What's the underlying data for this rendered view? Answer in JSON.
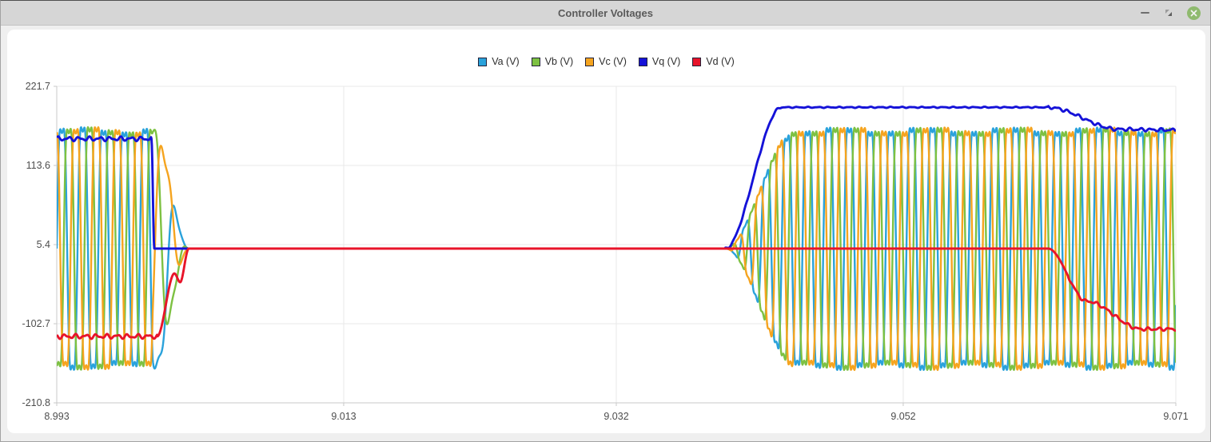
{
  "window": {
    "title": "Controller Voltages",
    "minimize_label": "minimize",
    "restore_label": "restore",
    "close_label": "close",
    "close_color": "#8FBA6E"
  },
  "chart_data": {
    "type": "line",
    "title": "",
    "xlabel": "",
    "ylabel": "",
    "x_range": [
      8.993,
      9.071
    ],
    "y_range": [
      -210.8,
      221.7
    ],
    "x_ticks": [
      "8.993",
      "9.013",
      "9.032",
      "9.052",
      "9.071"
    ],
    "x_tick_values": [
      8.993,
      9.013,
      9.032,
      9.052,
      9.071
    ],
    "y_ticks": [
      "221.7",
      "113.6",
      "5.4",
      "-102.7",
      "-210.8"
    ],
    "y_tick_values": [
      221.7,
      113.6,
      5.4,
      -102.7,
      -210.8
    ],
    "grid": true,
    "legend_position": "top-center",
    "grid_color": "#E8E8E8",
    "axis_color": "#C9C9C9",
    "tick_text_color": "#4D4D4D",
    "carrier_frequency_hz": 690,
    "decay_window": [
      8.9997,
      9.0022
    ],
    "decay_freq_scale": 0.5,
    "waveform_shape": {
      "fundamental_gain": 1.15,
      "third_harmonic_gain": 0.19,
      "ripple_harmonics": [
        2.0,
        3.3
      ]
    },
    "envelope_wobble": {
      "amp": 0.022,
      "freq_hz": 170
    },
    "series": [
      {
        "name": "Va (V)",
        "color": "#2AA2DB",
        "kind": "phase",
        "phase_deg": 0,
        "amplitude_v": 163,
        "envelope": [
          [
            8.993,
            163
          ],
          [
            8.9997,
            163
          ],
          [
            9.0022,
            0
          ],
          [
            9.0396,
            0
          ],
          [
            9.0445,
            163
          ],
          [
            9.071,
            163
          ]
        ]
      },
      {
        "name": "Vb (V)",
        "color": "#7DC142",
        "kind": "phase",
        "phase_deg": -120,
        "amplitude_v": 163,
        "envelope": [
          [
            8.993,
            163
          ],
          [
            8.9997,
            163
          ],
          [
            9.0022,
            0
          ],
          [
            9.0396,
            0
          ],
          [
            9.0445,
            163
          ],
          [
            9.071,
            163
          ]
        ]
      },
      {
        "name": "Vc (V)",
        "color": "#F5A41F",
        "kind": "phase",
        "phase_deg": -240,
        "amplitude_v": 163,
        "envelope": [
          [
            8.993,
            163
          ],
          [
            8.9997,
            163
          ],
          [
            9.0022,
            0
          ],
          [
            9.0396,
            0
          ],
          [
            9.0445,
            163
          ],
          [
            9.071,
            163
          ]
        ]
      },
      {
        "name": "Vq (V)",
        "color": "#1512D8",
        "kind": "dq",
        "base": [
          [
            8.993,
            150
          ],
          [
            8.9996,
            150
          ],
          [
            8.9998,
            0
          ],
          [
            9.0396,
            0
          ],
          [
            9.0435,
            193
          ],
          [
            9.0621,
            193
          ],
          [
            9.067,
            163
          ],
          [
            9.071,
            162
          ]
        ],
        "ripples": [
          {
            "window": [
              8.993,
              8.9996
            ],
            "amp": 3.2,
            "phase_deg": 40
          },
          {
            "window": [
              9.0396,
              9.0435
            ],
            "amp": 1.5,
            "phase_deg": 0
          },
          {
            "window": [
              9.0435,
              9.0621
            ],
            "amp": 0.8,
            "phase_deg": 0
          },
          {
            "window": [
              9.0621,
              9.071
            ],
            "amp": 2.4,
            "phase_deg": 0
          }
        ]
      },
      {
        "name": "Vd (V)",
        "color": "#E8142A",
        "kind": "dq",
        "base": [
          [
            8.993,
            -120
          ],
          [
            9.0,
            -120
          ],
          [
            9.0012,
            -34
          ],
          [
            9.0016,
            -46
          ],
          [
            9.0022,
            0
          ],
          [
            9.0621,
            0
          ],
          [
            9.0648,
            -72
          ],
          [
            9.0686,
            -110
          ],
          [
            9.071,
            -110
          ]
        ],
        "ripples": [
          {
            "window": [
              8.993,
              9.0
            ],
            "amp": 3.4,
            "phase_deg": 160
          },
          {
            "window": [
              9.0635,
              9.071
            ],
            "amp": 2.4,
            "phase_deg": 90
          }
        ]
      }
    ]
  }
}
